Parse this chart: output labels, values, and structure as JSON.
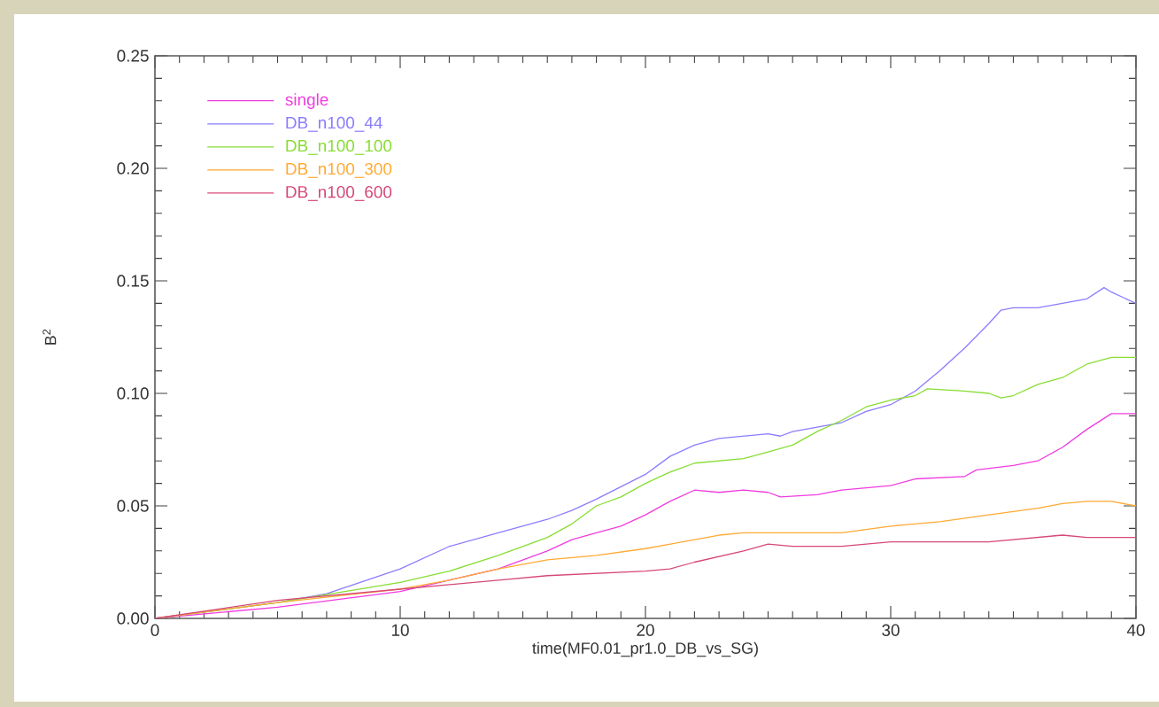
{
  "chart_data": {
    "type": "line",
    "xlabel": "time(MF0.01_pr1.0_DB_vs_SG)",
    "ylabel": "B$^{2}$",
    "xlim": [
      0,
      40
    ],
    "ylim": [
      0,
      0.25
    ],
    "xticks": [
      0,
      10,
      20,
      30,
      40
    ],
    "yticks": [
      {
        "value": 0,
        "label": "0.00"
      },
      {
        "value": 0.05,
        "label": "0.05"
      },
      {
        "value": 0.1,
        "label": "0.10"
      },
      {
        "value": 0.15,
        "label": "0.15"
      },
      {
        "value": 0.2,
        "label": "0.20"
      },
      {
        "value": 0.25,
        "label": "0.25"
      }
    ],
    "legend": "top left",
    "marker": "none",
    "line_style": "solid",
    "series": [
      {
        "name": "single",
        "color": "#f03ce0",
        "x": [
          0,
          5,
          10,
          12,
          14,
          16,
          17,
          18,
          19,
          20,
          21,
          22,
          23,
          24,
          25,
          25.5,
          27,
          28,
          30,
          31,
          33,
          33.5,
          35,
          36,
          37,
          38,
          39,
          40
        ],
        "values": [
          0,
          0.005,
          0.012,
          0.017,
          0.022,
          0.03,
          0.035,
          0.038,
          0.041,
          0.046,
          0.052,
          0.057,
          0.056,
          0.057,
          0.056,
          0.054,
          0.055,
          0.057,
          0.059,
          0.062,
          0.063,
          0.066,
          0.068,
          0.07,
          0.076,
          0.084,
          0.091,
          0.091
        ]
      },
      {
        "name": "DB_n100_44",
        "color": "#8a7cff",
        "x": [
          0,
          5,
          7,
          10,
          12,
          14,
          16,
          17,
          18,
          20,
          21,
          22,
          23,
          24,
          25,
          25.5,
          26,
          27,
          28,
          29,
          30,
          31,
          32,
          33,
          34,
          34.5,
          35,
          36,
          37,
          38,
          38.7,
          39,
          40
        ],
        "values": [
          0,
          0.007,
          0.011,
          0.022,
          0.032,
          0.038,
          0.044,
          0.048,
          0.053,
          0.064,
          0.072,
          0.077,
          0.08,
          0.081,
          0.082,
          0.081,
          0.083,
          0.085,
          0.087,
          0.092,
          0.095,
          0.101,
          0.11,
          0.12,
          0.131,
          0.137,
          0.138,
          0.138,
          0.14,
          0.142,
          0.147,
          0.145,
          0.14
        ]
      },
      {
        "name": "DB_n100_100",
        "color": "#88dd33",
        "x": [
          0,
          5,
          10,
          12,
          14,
          16,
          17,
          18,
          19,
          20,
          21,
          22,
          24,
          25,
          26,
          27,
          28,
          29,
          30,
          31,
          31.5,
          33,
          34,
          34.5,
          35,
          36,
          37,
          38,
          39,
          40
        ],
        "values": [
          0,
          0.007,
          0.016,
          0.021,
          0.028,
          0.036,
          0.042,
          0.05,
          0.054,
          0.06,
          0.065,
          0.069,
          0.071,
          0.074,
          0.077,
          0.083,
          0.088,
          0.094,
          0.097,
          0.099,
          0.102,
          0.101,
          0.1,
          0.098,
          0.099,
          0.104,
          0.107,
          0.113,
          0.116,
          0.116
        ]
      },
      {
        "name": "DB_n100_300",
        "color": "#ffaa33",
        "x": [
          0,
          5,
          10,
          12,
          14,
          16,
          18,
          20,
          22,
          23,
          24,
          26,
          28,
          30,
          32,
          34,
          36,
          37,
          38,
          39,
          40
        ],
        "values": [
          0,
          0.007,
          0.013,
          0.017,
          0.022,
          0.026,
          0.028,
          0.031,
          0.035,
          0.037,
          0.038,
          0.038,
          0.038,
          0.041,
          0.043,
          0.046,
          0.049,
          0.051,
          0.052,
          0.052,
          0.05
        ]
      },
      {
        "name": "DB_n100_600",
        "color": "#d64877",
        "x": [
          0,
          5,
          10,
          12,
          14,
          16,
          18,
          20,
          21,
          22,
          24,
          25,
          26,
          28,
          30,
          32,
          34,
          35,
          36,
          37,
          38,
          40
        ],
        "values": [
          0,
          0.008,
          0.013,
          0.015,
          0.017,
          0.019,
          0.02,
          0.021,
          0.022,
          0.025,
          0.03,
          0.033,
          0.032,
          0.032,
          0.034,
          0.034,
          0.034,
          0.035,
          0.036,
          0.037,
          0.036,
          0.036
        ]
      }
    ]
  }
}
